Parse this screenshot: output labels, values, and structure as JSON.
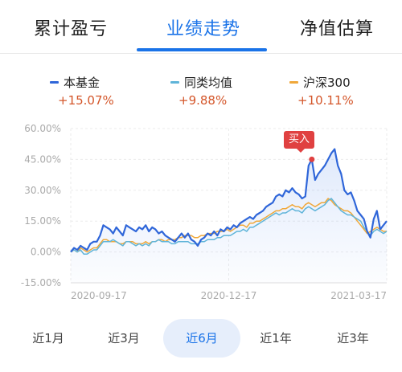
{
  "tabs": [
    {
      "label": "累计盈亏",
      "active": false
    },
    {
      "label": "业绩走势",
      "active": true
    },
    {
      "label": "净值估算",
      "active": false
    }
  ],
  "legend": [
    {
      "name": "本基金",
      "value": "+15.07%",
      "color": "#2f66d9"
    },
    {
      "name": "同类均值",
      "value": "+9.88%",
      "color": "#5fb4d9"
    },
    {
      "name": "沪深300",
      "value": "+10.11%",
      "color": "#f0a83a"
    }
  ],
  "buy_label": "买入",
  "periods": [
    {
      "label": "近1月",
      "active": false
    },
    {
      "label": "近3月",
      "active": false
    },
    {
      "label": "近6月",
      "active": true
    },
    {
      "label": "近1年",
      "active": false
    },
    {
      "label": "近3年",
      "active": false
    }
  ],
  "chart_data": {
    "type": "line",
    "y_ticks": [
      "60.00%",
      "45.00%",
      "30.00%",
      "15.00%",
      "0.00%",
      "-15.00%"
    ],
    "ylim": [
      -15,
      60
    ],
    "x_ticks": [
      "2020-09-17",
      "2020-12-17",
      "2021-03-17"
    ],
    "buy_marker": {
      "series": "本基金",
      "y": 45.0
    },
    "series": [
      {
        "name": "本基金",
        "color": "#2f66d9",
        "values": [
          0,
          2,
          1,
          3,
          2,
          1,
          4,
          5,
          5,
          8,
          13,
          12,
          11,
          9,
          12,
          10,
          8,
          13,
          12,
          11,
          10,
          12,
          11,
          13,
          10,
          12,
          11,
          9,
          10,
          8,
          7,
          6,
          5,
          7,
          9,
          7,
          9,
          6,
          5,
          3,
          6,
          7,
          9,
          8,
          10,
          8,
          11,
          10,
          12,
          11,
          13,
          12,
          14,
          15,
          16,
          17,
          16,
          18,
          19,
          20,
          22,
          23,
          24,
          27,
          28,
          27,
          30,
          29,
          31,
          29,
          28,
          26,
          27,
          42,
          45,
          35,
          38,
          40,
          42,
          45,
          48,
          50,
          42,
          38,
          30,
          28,
          29,
          25,
          20,
          18,
          16,
          10,
          7,
          16,
          20,
          11,
          13,
          15
        ]
      },
      {
        "name": "同类均值",
        "color": "#5fb4d9",
        "values": [
          0,
          1,
          0,
          1,
          -1,
          -1,
          0,
          1,
          1,
          3,
          5,
          5,
          5,
          6,
          5,
          4,
          3,
          5,
          5,
          4,
          3,
          4,
          3,
          4,
          3,
          5,
          5,
          6,
          5,
          5,
          5,
          4,
          4,
          5,
          5,
          5,
          5,
          4,
          4,
          4,
          5,
          5,
          6,
          6,
          6,
          7,
          7,
          8,
          8,
          8,
          9,
          10,
          10,
          11,
          10,
          12,
          12,
          13,
          14,
          15,
          16,
          17,
          18,
          19,
          18,
          19,
          19,
          20,
          21,
          20,
          20,
          19,
          21,
          22,
          21,
          20,
          21,
          22,
          23,
          25,
          26,
          24,
          22,
          20,
          19,
          18,
          18,
          17,
          16,
          15,
          12,
          10,
          8,
          10,
          11,
          10,
          9,
          10
        ]
      },
      {
        "name": "沪深300",
        "color": "#f0a83a",
        "values": [
          0,
          1,
          0,
          2,
          1,
          0,
          1,
          2,
          2,
          4,
          6,
          6,
          5,
          5,
          5,
          4,
          4,
          5,
          5,
          5,
          4,
          4,
          4,
          5,
          4,
          5,
          5,
          6,
          6,
          5,
          6,
          6,
          6,
          7,
          7,
          8,
          8,
          8,
          7,
          7,
          8,
          8,
          9,
          9,
          9,
          10,
          10,
          10,
          11,
          10,
          11,
          12,
          13,
          13,
          12,
          14,
          14,
          15,
          15,
          16,
          17,
          18,
          19,
          20,
          20,
          21,
          21,
          22,
          23,
          22,
          22,
          21,
          23,
          24,
          23,
          22,
          23,
          24,
          24,
          26,
          25,
          23,
          22,
          21,
          20,
          20,
          19,
          17,
          15,
          13,
          11,
          9,
          10,
          11,
          12,
          11,
          10,
          10
        ]
      }
    ]
  }
}
